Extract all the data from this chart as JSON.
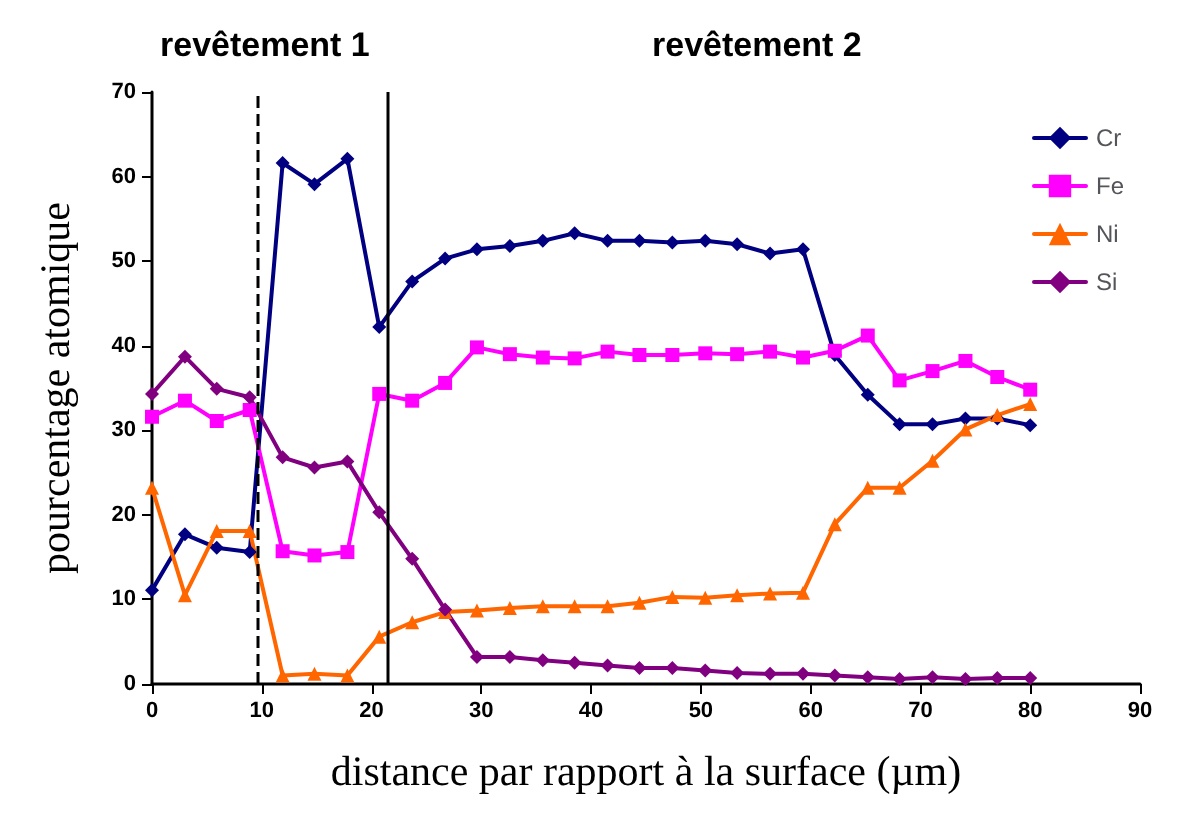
{
  "chart_data": {
    "type": "line",
    "xlabel": "distance par rapport à la surface (µm)",
    "ylabel": "pourcentage atomique",
    "annotations": [
      "revêtement 1",
      "revêtement 2"
    ],
    "x": [
      0,
      3.0,
      5.9,
      8.9,
      11.9,
      14.8,
      17.8,
      20.7,
      23.7,
      26.7,
      29.6,
      32.6,
      35.6,
      38.5,
      41.5,
      44.4,
      47.4,
      50.4,
      53.3,
      56.3,
      59.3,
      62.2,
      65.2,
      68.1,
      71.1,
      74.1,
      77.0,
      80.0
    ],
    "series": [
      {
        "name": "Cr",
        "color": "#000080",
        "marker": "diamond",
        "values": [
          11.1,
          17.7,
          16.1,
          15.6,
          61.6,
          59.1,
          62.1,
          42.2,
          47.6,
          50.3,
          51.4,
          51.8,
          52.4,
          53.3,
          52.4,
          52.4,
          52.2,
          52.4,
          52.0,
          50.9,
          51.4,
          38.9,
          34.2,
          30.7,
          30.7,
          31.4,
          31.4,
          30.6
        ]
      },
      {
        "name": "Fe",
        "color": "#ff00ff",
        "marker": "square",
        "values": [
          31.6,
          33.5,
          31.1,
          32.4,
          15.7,
          15.2,
          15.6,
          34.3,
          33.5,
          35.6,
          39.8,
          39.0,
          38.6,
          38.5,
          39.3,
          38.9,
          38.9,
          39.1,
          39.0,
          39.3,
          38.6,
          39.4,
          41.2,
          35.9,
          37.0,
          38.2,
          36.3,
          34.8
        ]
      },
      {
        "name": "Ni",
        "color": "#ff6600",
        "marker": "triangle",
        "values": [
          23.2,
          10.5,
          18.1,
          18.1,
          1.0,
          1.2,
          1.0,
          5.6,
          7.3,
          8.5,
          8.7,
          9.0,
          9.2,
          9.2,
          9.2,
          9.6,
          10.3,
          10.2,
          10.5,
          10.7,
          10.8,
          18.9,
          23.2,
          23.2,
          26.4,
          30.1,
          31.8,
          33.1
        ]
      },
      {
        "name": "Si",
        "color": "#800080",
        "marker": "diamond",
        "values": [
          34.3,
          38.7,
          34.9,
          33.9,
          26.8,
          25.6,
          26.3,
          20.3,
          14.8,
          8.8,
          3.2,
          3.2,
          2.8,
          2.5,
          2.2,
          1.9,
          1.9,
          1.6,
          1.3,
          1.2,
          1.2,
          1.0,
          0.8,
          0.6,
          0.8,
          0.6,
          0.7,
          0.7
        ]
      }
    ],
    "xlim": [
      0,
      90
    ],
    "xticks": [
      0,
      10,
      20,
      30,
      40,
      50,
      60,
      70,
      80,
      90
    ],
    "ylim": [
      0,
      70
    ],
    "yticks": [
      0,
      10,
      20,
      30,
      40,
      50,
      60,
      70
    ],
    "ref_lines": [
      {
        "axis": "x",
        "value": 9.6,
        "line_style": "dashed",
        "color": "#000000"
      },
      {
        "axis": "x",
        "value": 21.5,
        "line_style": "solid",
        "color": "#000000"
      }
    ],
    "grid": false,
    "legend": "top right",
    "line_style": "solid"
  }
}
